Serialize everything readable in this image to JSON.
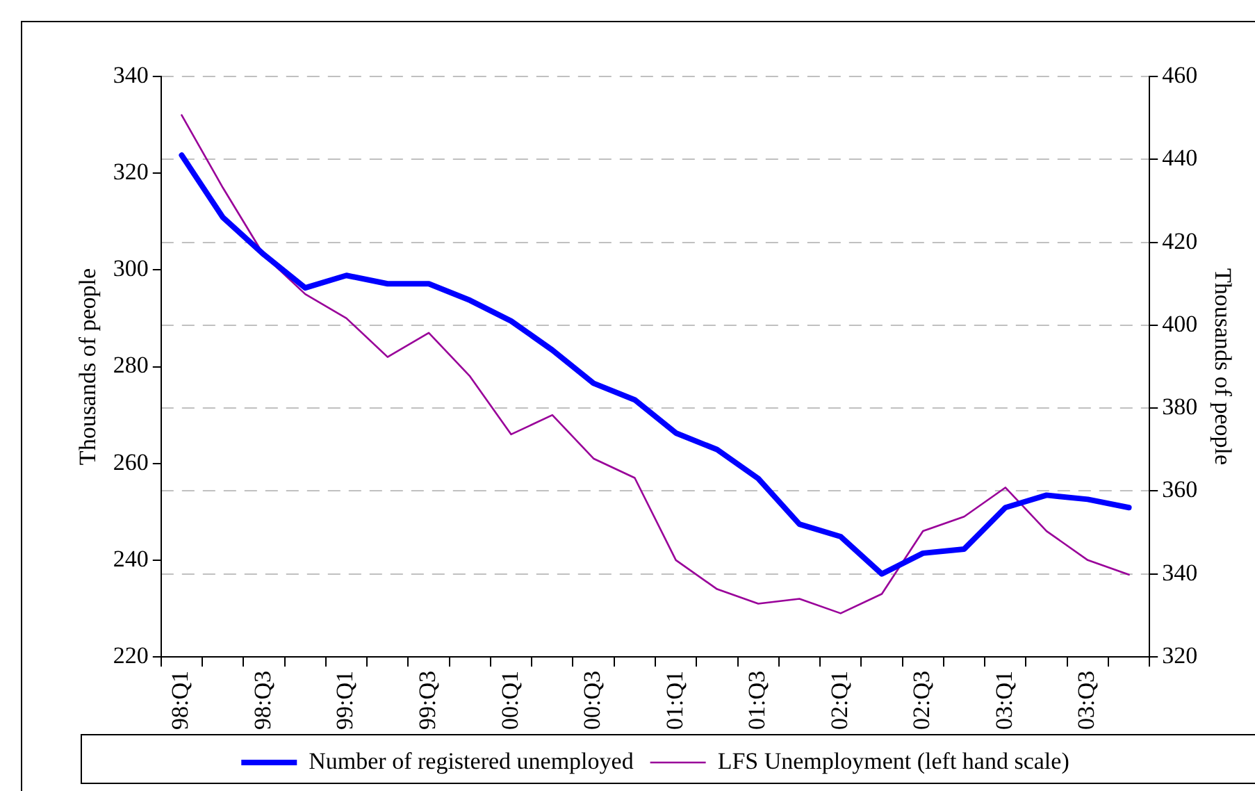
{
  "chart_data": {
    "type": "line",
    "ylabel": "Thousands of people",
    "y2label": "Thousands of people",
    "categories": [
      "98:Q1",
      null,
      "98:Q3",
      null,
      "99:Q1",
      null,
      "99:Q3",
      null,
      "00:Q1",
      null,
      "00:Q3",
      null,
      "01:Q1",
      null,
      "01:Q3",
      null,
      "02:Q1",
      null,
      "02:Q3",
      null,
      "03:Q1",
      null,
      "03:Q3",
      null
    ],
    "series": [
      {
        "name": "Number of registered unemployed",
        "color": "#0000ff",
        "axis": "y2",
        "values": [
          441,
          426,
          417,
          409,
          412,
          410,
          410,
          406,
          401,
          394,
          386,
          382,
          374,
          370,
          363,
          352,
          349,
          340,
          345,
          346,
          356,
          359,
          358,
          356
        ]
      },
      {
        "name": "LFS Unemployment (left hand scale)",
        "color": "#990099",
        "values": [
          332,
          317,
          303,
          295,
          290,
          282,
          287,
          278,
          266,
          270,
          261,
          257,
          240,
          234,
          231,
          232,
          229,
          233,
          246,
          249,
          255,
          246,
          240,
          237
        ]
      }
    ],
    "ylim": [
      220,
      340
    ],
    "yticks": [
      220,
      240,
      260,
      280,
      300,
      320,
      340
    ],
    "y2lim": [
      320,
      460
    ],
    "y2ticks": [
      320,
      340,
      360,
      380,
      400,
      420,
      440,
      460
    ],
    "grid": "y",
    "legend": "bottom",
    "marker": "none",
    "line_style": "solid"
  }
}
